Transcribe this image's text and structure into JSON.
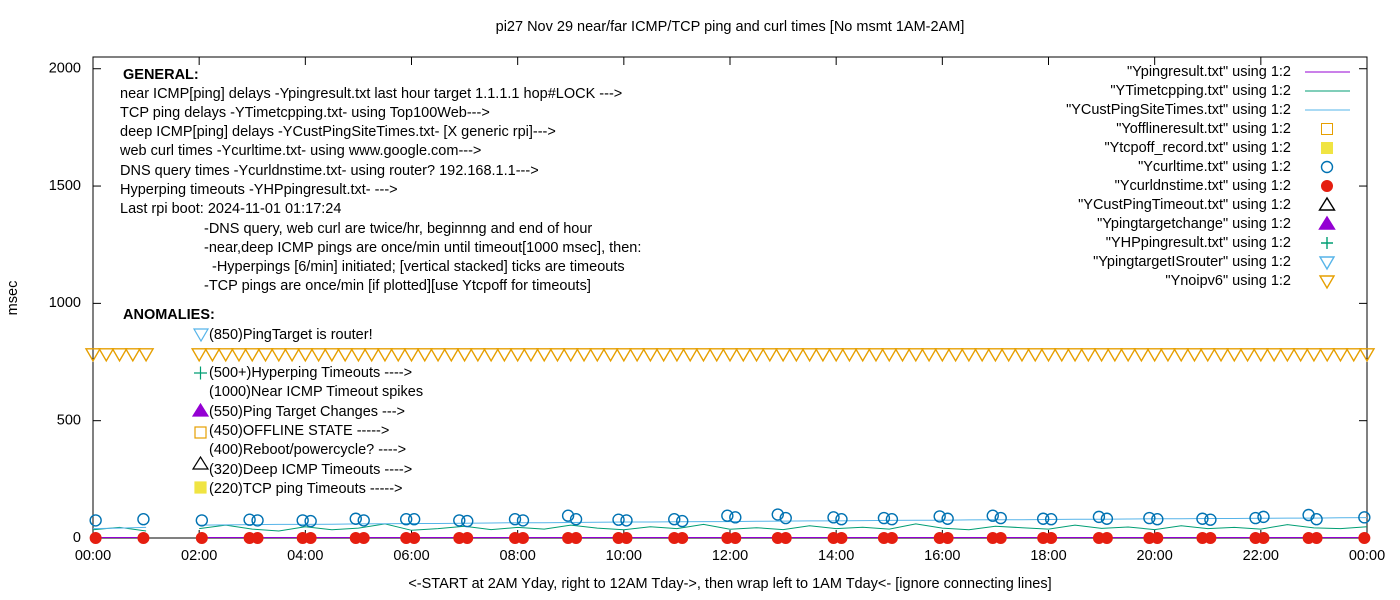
{
  "chart_data": {
    "type": "line",
    "title": "pi27 Nov 29  near/far ICMP/TCP ping and curl times [No msmt 1AM-2AM]",
    "xlabel": "<-START at 2AM Yday, right to 12AM Tday->, then wrap left to 1AM Tday<- [ignore connecting lines]",
    "ylabel": "msec",
    "xlim": [
      0,
      24
    ],
    "ylim": [
      0,
      2050
    ],
    "yticks": [
      0,
      500,
      1000,
      1500,
      2000
    ],
    "xticks": [
      {
        "value": 0,
        "label": "00:00"
      },
      {
        "value": 2,
        "label": "02:00"
      },
      {
        "value": 4,
        "label": "04:00"
      },
      {
        "value": 6,
        "label": "06:00"
      },
      {
        "value": 8,
        "label": "08:00"
      },
      {
        "value": 10,
        "label": "10:00"
      },
      {
        "value": 12,
        "label": "12:00"
      },
      {
        "value": 14,
        "label": "14:00"
      },
      {
        "value": 16,
        "label": "16:00"
      },
      {
        "value": 18,
        "label": "18:00"
      },
      {
        "value": 20,
        "label": "20:00"
      },
      {
        "value": 22,
        "label": "22:00"
      },
      {
        "value": 24,
        "label": "00:00"
      }
    ],
    "notes": [
      "GENERAL:",
      "near ICMP[ping] delays -Ypingresult.txt last hour target 1.1.1.1 hop#LOCK --->",
      "TCP ping delays -YTimetcpping.txt- using Top100Web--->",
      "deep ICMP[ping] delays -YCustPingSiteTimes.txt- [X generic rpi]--->",
      "web curl times -Ycurltime.txt- using www.google.com--->",
      "DNS query times -Ycurldnstime.txt- using router? 192.168.1.1--->",
      "Hyperping timeouts -YHPpingresult.txt- --->",
      "Last rpi boot: 2024-11-01 01:17:24",
      "-DNS query, web curl are twice/hr, beginnng and end of hour",
      "-near,deep ICMP pings are once/min until timeout[1000 msec], then:",
      "-Hyperpings [6/min] initiated; [vertical stacked] ticks are timeouts",
      "-TCP pings are once/min [if plotted][use Ytcpoff for timeouts]",
      "ANOMALIES:",
      "(850)PingTarget is router!",
      "(500+)Hyperping Timeouts ---->",
      "(1000)Near ICMP Timeout spikes",
      "(550)Ping Target Changes --->",
      "(450)OFFLINE STATE ----->",
      "(400)Reboot/powercycle? ---->",
      "(320)Deep ICMP Timeouts ---->",
      "(220)TCP ping Timeouts ----->"
    ],
    "series": [
      {
        "name": "\"Ypingresult.txt\" using 1:2",
        "color": "#9400d3",
        "marker": "line",
        "x": [
          0,
          1,
          1.5,
          2,
          24
        ],
        "values": [
          2,
          2,
          null,
          2,
          2
        ]
      },
      {
        "name": "\"YTimetcpping.txt\" using 1:2",
        "color": "#009e73",
        "marker": "line",
        "x": [
          0,
          0.5,
          1,
          1.5,
          2,
          2.5,
          3,
          3.5,
          4,
          4.5,
          5,
          5.5,
          6,
          6.5,
          7,
          7.5,
          8,
          8.5,
          9,
          9.5,
          10,
          10.5,
          11,
          11.5,
          12,
          12.5,
          13,
          13.5,
          14,
          14.5,
          15,
          15.5,
          16,
          16.5,
          17,
          17.5,
          18,
          18.5,
          19,
          19.5,
          20,
          20.5,
          21,
          21.5,
          22,
          22.5,
          23,
          23.5,
          24
        ],
        "values": [
          35,
          45,
          30,
          null,
          40,
          55,
          38,
          30,
          48,
          35,
          42,
          60,
          33,
          40,
          50,
          36,
          45,
          38,
          55,
          42,
          35,
          48,
          40,
          58,
          37,
          44,
          36,
          52,
          40,
          46,
          38,
          60,
          42,
          35,
          50,
          44,
          38,
          55,
          41,
          47,
          36,
          52,
          40,
          45,
          38,
          57,
          43,
          40,
          48
        ]
      },
      {
        "name": "\"YCustPingSiteTimes.txt\" using 1:2",
        "color": "#56b4e9",
        "marker": "line",
        "x": [
          0,
          0.5,
          1,
          1.5,
          2,
          2.5,
          3,
          3.5,
          4,
          4.5,
          5,
          5.5,
          6,
          6.5,
          7,
          7.5,
          8,
          8.5,
          9,
          9.5,
          10,
          10.5,
          11,
          11.5,
          12,
          12.5,
          13,
          13.5,
          14,
          14.5,
          15,
          15.5,
          16,
          16.5,
          17,
          17.5,
          18,
          18.5,
          19,
          19.5,
          20,
          20.5,
          21,
          21.5,
          22,
          22.5,
          23,
          23.5,
          24
        ],
        "values": [
          40,
          42,
          45,
          null,
          55,
          56,
          57,
          58,
          58,
          59,
          60,
          61,
          62,
          62,
          63,
          64,
          65,
          65,
          66,
          67,
          68,
          68,
          69,
          70,
          70,
          71,
          72,
          73,
          73,
          74,
          75,
          76,
          76,
          77,
          78,
          78,
          79,
          80,
          80,
          81,
          82,
          82,
          83,
          83,
          84,
          85,
          85,
          86,
          87
        ]
      },
      {
        "name": "\"Yofflineresult.txt\" using 1:2",
        "color": "#e69f00",
        "marker": "square-open",
        "x": [],
        "values": []
      },
      {
        "name": "\"Ytcpoff_record.txt\" using 1:2",
        "color": "#f0e442",
        "marker": "square",
        "x": [],
        "values": []
      },
      {
        "name": "\"Ycurltime.txt\" using 1:2",
        "color": "#0072b2",
        "marker": "circle-open",
        "x": [
          0.05,
          0.95,
          2.05,
          2.95,
          3.1,
          3.95,
          4.1,
          4.95,
          5.1,
          5.9,
          6.05,
          6.9,
          7.05,
          7.95,
          8.1,
          8.95,
          9.1,
          9.9,
          10.05,
          10.95,
          11.1,
          11.95,
          12.1,
          12.9,
          13.05,
          13.95,
          14.1,
          14.9,
          15.05,
          15.95,
          16.1,
          16.95,
          17.1,
          17.9,
          18.05,
          18.95,
          19.1,
          19.9,
          20.05,
          20.9,
          21.05,
          21.9,
          22.05,
          22.9,
          23.05,
          23.95
        ],
        "values": [
          75,
          80,
          75,
          78,
          75,
          75,
          72,
          82,
          75,
          80,
          80,
          75,
          72,
          80,
          75,
          95,
          80,
          78,
          75,
          80,
          72,
          95,
          88,
          100,
          85,
          88,
          80,
          85,
          80,
          92,
          82,
          95,
          85,
          82,
          80,
          90,
          82,
          85,
          80,
          82,
          78,
          85,
          90,
          98,
          80,
          88
        ]
      },
      {
        "name": "\"Ycurldnstime.txt\" using 1:2",
        "color": "#e51e10",
        "marker": "circle",
        "x": [
          0.05,
          0.95,
          2.05,
          2.95,
          3.1,
          3.95,
          4.1,
          4.95,
          5.1,
          5.9,
          6.05,
          6.9,
          7.05,
          7.95,
          8.1,
          8.95,
          9.1,
          9.9,
          10.05,
          10.95,
          11.1,
          11.95,
          12.1,
          12.9,
          13.05,
          13.95,
          14.1,
          14.9,
          15.05,
          15.95,
          16.1,
          16.95,
          17.1,
          17.9,
          18.05,
          18.95,
          19.1,
          19.9,
          20.05,
          20.9,
          21.05,
          21.9,
          22.05,
          22.9,
          23.05,
          23.95
        ],
        "values": [
          0,
          0,
          0,
          0,
          0,
          0,
          0,
          0,
          0,
          0,
          0,
          0,
          0,
          0,
          0,
          0,
          0,
          0,
          0,
          0,
          0,
          0,
          0,
          0,
          0,
          0,
          0,
          0,
          0,
          0,
          0,
          0,
          0,
          0,
          0,
          0,
          0,
          0,
          0,
          0,
          0,
          0,
          0,
          0,
          0,
          0
        ]
      },
      {
        "name": "\"YCustPingTimeout.txt\" using 1:2",
        "color": "#000000",
        "marker": "triangle-open",
        "x": [],
        "values": []
      },
      {
        "name": "\"Ypingtargetchange\" using 1:2",
        "color": "#9400d3",
        "marker": "triangle",
        "x": [],
        "values": []
      },
      {
        "name": "\"YHPpingresult.txt\" using 1:2",
        "color": "#009e73",
        "marker": "plus",
        "x": [],
        "values": []
      },
      {
        "name": "\"YpingtargetISrouter\" using 1:2",
        "color": "#56b4e9",
        "marker": "triangle-down-open",
        "x": [],
        "values": []
      },
      {
        "name": "\"Ynoipv6\" using 1:2",
        "color": "#e69f00",
        "marker": "triangle-down-open",
        "x": [
          0,
          0.25,
          0.5,
          0.75,
          1,
          2,
          2.25,
          2.5,
          2.75,
          3,
          3.25,
          3.5,
          3.75,
          4,
          4.25,
          4.5,
          4.75,
          5,
          5.25,
          5.5,
          5.75,
          6,
          6.25,
          6.5,
          6.75,
          7,
          7.25,
          7.5,
          7.75,
          8,
          8.25,
          8.5,
          8.75,
          9,
          9.25,
          9.5,
          9.75,
          10,
          10.25,
          10.5,
          10.75,
          11,
          11.25,
          11.5,
          11.75,
          12,
          12.25,
          12.5,
          12.75,
          13,
          13.25,
          13.5,
          13.75,
          14,
          14.25,
          14.5,
          14.75,
          15,
          15.25,
          15.5,
          15.75,
          16,
          16.25,
          16.5,
          16.75,
          17,
          17.25,
          17.5,
          17.75,
          18,
          18.25,
          18.5,
          18.75,
          19,
          19.25,
          19.5,
          19.75,
          20,
          20.25,
          20.5,
          20.75,
          21,
          21.25,
          21.5,
          21.75,
          22,
          22.25,
          22.5,
          22.75,
          23,
          23.25,
          23.5,
          23.75,
          24
        ],
        "values": [
          785,
          785,
          785,
          785,
          785,
          785,
          785,
          785,
          785,
          785,
          785,
          785,
          785,
          785,
          785,
          785,
          785,
          785,
          785,
          785,
          785,
          785,
          785,
          785,
          785,
          785,
          785,
          785,
          785,
          785,
          785,
          785,
          785,
          785,
          785,
          785,
          785,
          785,
          785,
          785,
          785,
          785,
          785,
          785,
          785,
          785,
          785,
          785,
          785,
          785,
          785,
          785,
          785,
          785,
          785,
          785,
          785,
          785,
          785,
          785,
          785,
          785,
          785,
          785,
          785,
          785,
          785,
          785,
          785,
          785,
          785,
          785,
          785,
          785,
          785,
          785,
          785,
          785,
          785,
          785,
          785,
          785,
          785,
          785,
          785,
          785,
          785,
          785,
          785,
          785,
          785,
          785,
          785,
          785
        ]
      }
    ]
  }
}
